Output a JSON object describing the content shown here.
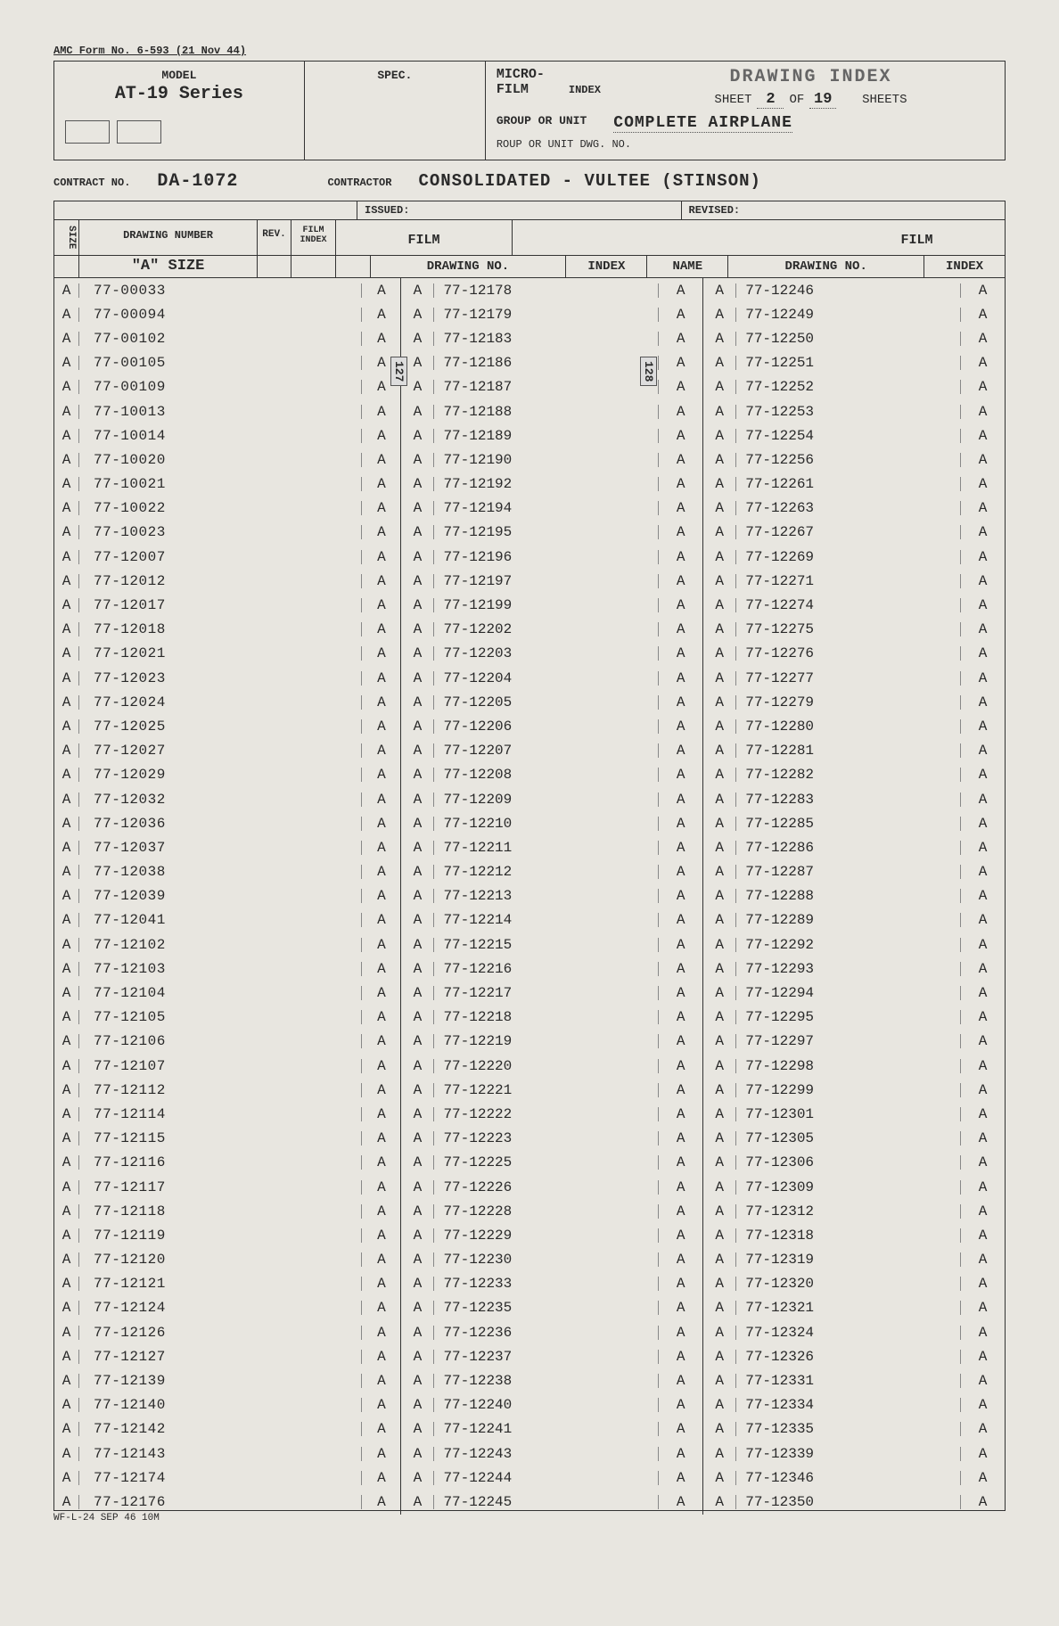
{
  "form_header": "AMC Form No. 6-593 (21 Nov 44)",
  "model_label": "MODEL",
  "model_value": "AT-19 Series",
  "spec_label": "SPEC.",
  "micro_label": "MICRO-",
  "film_label": "FILM",
  "index_label": "INDEX",
  "drawing_index_title": "DRAWING INDEX",
  "sheet_label": "SHEET",
  "sheet_num": "2",
  "of_label": "OF",
  "sheet_total": "19",
  "sheets_label": "SHEETS",
  "group_label": "GROUP OR UNIT",
  "group_value": "COMPLETE AIRPLANE",
  "roup_label": "ROUP OR UNIT DWG. NO.",
  "contract_label": "CONTRACT NO.",
  "contract_value": "DA-1072",
  "contractor_label": "CONTRACTOR",
  "contractor_value": "CONSOLIDATED - VULTEE (STINSON)",
  "issued_label": "ISSUED:",
  "revised_label": "REVISED:",
  "hdr_size": "SIZE",
  "hdr_drawing_number": "DRAWING NUMBER",
  "hdr_rev": "REV.",
  "hdr_film_index": "FILM INDEX",
  "hdr_film": "FILM",
  "hdr_drawing_no": "DRAWING NO.",
  "hdr_index": "INDEX",
  "hdr_name": "NAME",
  "a_size_label": "\"A\" SIZE",
  "tag_127": "127",
  "tag_128": "128",
  "footer": "WF-L-24 SEP 46  10M",
  "col1": [
    {
      "s": "A",
      "n": "77-00033",
      "f": "A"
    },
    {
      "s": "A",
      "n": "77-00094",
      "f": "A"
    },
    {
      "s": "A",
      "n": "77-00102",
      "f": "A"
    },
    {
      "s": "A",
      "n": "77-00105",
      "f": "A"
    },
    {
      "s": "A",
      "n": "77-00109",
      "f": "A"
    },
    {
      "s": "A",
      "n": "77-10013",
      "f": "A"
    },
    {
      "s": "A",
      "n": "77-10014",
      "f": "A"
    },
    {
      "s": "A",
      "n": "77-10020",
      "f": "A"
    },
    {
      "s": "A",
      "n": "77-10021",
      "f": "A"
    },
    {
      "s": "A",
      "n": "77-10022",
      "f": "A"
    },
    {
      "s": "A",
      "n": "77-10023",
      "f": "A"
    },
    {
      "s": "A",
      "n": "77-12007",
      "f": "A"
    },
    {
      "s": "A",
      "n": "77-12012",
      "f": "A"
    },
    {
      "s": "A",
      "n": "77-12017",
      "f": "A"
    },
    {
      "s": "A",
      "n": "77-12018",
      "f": "A"
    },
    {
      "s": "A",
      "n": "77-12021",
      "f": "A"
    },
    {
      "s": "A",
      "n": "77-12023",
      "f": "A"
    },
    {
      "s": "A",
      "n": "77-12024",
      "f": "A"
    },
    {
      "s": "A",
      "n": "77-12025",
      "f": "A"
    },
    {
      "s": "A",
      "n": "77-12027",
      "f": "A"
    },
    {
      "s": "A",
      "n": "77-12029",
      "f": "A"
    },
    {
      "s": "A",
      "n": "77-12032",
      "f": "A"
    },
    {
      "s": "A",
      "n": "77-12036",
      "f": "A"
    },
    {
      "s": "A",
      "n": "77-12037",
      "f": "A"
    },
    {
      "s": "A",
      "n": "77-12038",
      "f": "A"
    },
    {
      "s": "A",
      "n": "77-12039",
      "f": "A"
    },
    {
      "s": "A",
      "n": "77-12041",
      "f": "A"
    },
    {
      "s": "A",
      "n": "77-12102",
      "f": "A"
    },
    {
      "s": "A",
      "n": "77-12103",
      "f": "A"
    },
    {
      "s": "A",
      "n": "77-12104",
      "f": "A"
    },
    {
      "s": "A",
      "n": "77-12105",
      "f": "A"
    },
    {
      "s": "A",
      "n": "77-12106",
      "f": "A"
    },
    {
      "s": "A",
      "n": "77-12107",
      "f": "A"
    },
    {
      "s": "A",
      "n": "77-12112",
      "f": "A"
    },
    {
      "s": "A",
      "n": "77-12114",
      "f": "A"
    },
    {
      "s": "A",
      "n": "77-12115",
      "f": "A"
    },
    {
      "s": "A",
      "n": "77-12116",
      "f": "A"
    },
    {
      "s": "A",
      "n": "77-12117",
      "f": "A"
    },
    {
      "s": "A",
      "n": "77-12118",
      "f": "A"
    },
    {
      "s": "A",
      "n": "77-12119",
      "f": "A"
    },
    {
      "s": "A",
      "n": "77-12120",
      "f": "A"
    },
    {
      "s": "A",
      "n": "77-12121",
      "f": "A"
    },
    {
      "s": "A",
      "n": "77-12124",
      "f": "A"
    },
    {
      "s": "A",
      "n": "77-12126",
      "f": "A"
    },
    {
      "s": "A",
      "n": "77-12127",
      "f": "A"
    },
    {
      "s": "A",
      "n": "77-12139",
      "f": "A"
    },
    {
      "s": "A",
      "n": "77-12140",
      "f": "A"
    },
    {
      "s": "A",
      "n": "77-12142",
      "f": "A"
    },
    {
      "s": "A",
      "n": "77-12143",
      "f": "A"
    },
    {
      "s": "A",
      "n": "77-12174",
      "f": "A"
    },
    {
      "s": "A",
      "n": "77-12176",
      "f": "A"
    }
  ],
  "col2": [
    {
      "s": "A",
      "n": "77-12178",
      "f": "A"
    },
    {
      "s": "A",
      "n": "77-12179",
      "f": "A"
    },
    {
      "s": "A",
      "n": "77-12183",
      "f": "A"
    },
    {
      "s": "A",
      "n": "77-12186",
      "f": "A"
    },
    {
      "s": "A",
      "n": "77-12187",
      "f": "A"
    },
    {
      "s": "A",
      "n": "77-12188",
      "f": "A"
    },
    {
      "s": "A",
      "n": "77-12189",
      "f": "A"
    },
    {
      "s": "A",
      "n": "77-12190",
      "f": "A"
    },
    {
      "s": "A",
      "n": "77-12192",
      "f": "A"
    },
    {
      "s": "A",
      "n": "77-12194",
      "f": "A"
    },
    {
      "s": "A",
      "n": "77-12195",
      "f": "A"
    },
    {
      "s": "A",
      "n": "77-12196",
      "f": "A"
    },
    {
      "s": "A",
      "n": "77-12197",
      "f": "A"
    },
    {
      "s": "A",
      "n": "77-12199",
      "f": "A"
    },
    {
      "s": "A",
      "n": "77-12202",
      "f": "A"
    },
    {
      "s": "A",
      "n": "77-12203",
      "f": "A"
    },
    {
      "s": "A",
      "n": "77-12204",
      "f": "A"
    },
    {
      "s": "A",
      "n": "77-12205",
      "f": "A"
    },
    {
      "s": "A",
      "n": "77-12206",
      "f": "A"
    },
    {
      "s": "A",
      "n": "77-12207",
      "f": "A"
    },
    {
      "s": "A",
      "n": "77-12208",
      "f": "A"
    },
    {
      "s": "A",
      "n": "77-12209",
      "f": "A"
    },
    {
      "s": "A",
      "n": "77-12210",
      "f": "A"
    },
    {
      "s": "A",
      "n": "77-12211",
      "f": "A"
    },
    {
      "s": "A",
      "n": "77-12212",
      "f": "A"
    },
    {
      "s": "A",
      "n": "77-12213",
      "f": "A"
    },
    {
      "s": "A",
      "n": "77-12214",
      "f": "A"
    },
    {
      "s": "A",
      "n": "77-12215",
      "f": "A"
    },
    {
      "s": "A",
      "n": "77-12216",
      "f": "A"
    },
    {
      "s": "A",
      "n": "77-12217",
      "f": "A"
    },
    {
      "s": "A",
      "n": "77-12218",
      "f": "A"
    },
    {
      "s": "A",
      "n": "77-12219",
      "f": "A"
    },
    {
      "s": "A",
      "n": "77-12220",
      "f": "A"
    },
    {
      "s": "A",
      "n": "77-12221",
      "f": "A"
    },
    {
      "s": "A",
      "n": "77-12222",
      "f": "A"
    },
    {
      "s": "A",
      "n": "77-12223",
      "f": "A"
    },
    {
      "s": "A",
      "n": "77-12225",
      "f": "A"
    },
    {
      "s": "A",
      "n": "77-12226",
      "f": "A"
    },
    {
      "s": "A",
      "n": "77-12228",
      "f": "A"
    },
    {
      "s": "A",
      "n": "77-12229",
      "f": "A"
    },
    {
      "s": "A",
      "n": "77-12230",
      "f": "A"
    },
    {
      "s": "A",
      "n": "77-12233",
      "f": "A"
    },
    {
      "s": "A",
      "n": "77-12235",
      "f": "A"
    },
    {
      "s": "A",
      "n": "77-12236",
      "f": "A"
    },
    {
      "s": "A",
      "n": "77-12237",
      "f": "A"
    },
    {
      "s": "A",
      "n": "77-12238",
      "f": "A"
    },
    {
      "s": "A",
      "n": "77-12240",
      "f": "A"
    },
    {
      "s": "A",
      "n": "77-12241",
      "f": "A"
    },
    {
      "s": "A",
      "n": "77-12243",
      "f": "A"
    },
    {
      "s": "A",
      "n": "77-12244",
      "f": "A"
    },
    {
      "s": "A",
      "n": "77-12245",
      "f": "A"
    }
  ],
  "col3": [
    {
      "s": "A",
      "n": "77-12246",
      "f": "A"
    },
    {
      "s": "A",
      "n": "77-12249",
      "f": "A"
    },
    {
      "s": "A",
      "n": "77-12250",
      "f": "A"
    },
    {
      "s": "A",
      "n": "77-12251",
      "f": "A"
    },
    {
      "s": "A",
      "n": "77-12252",
      "f": "A"
    },
    {
      "s": "A",
      "n": "77-12253",
      "f": "A"
    },
    {
      "s": "A",
      "n": "77-12254",
      "f": "A"
    },
    {
      "s": "A",
      "n": "77-12256",
      "f": "A"
    },
    {
      "s": "A",
      "n": "77-12261",
      "f": "A"
    },
    {
      "s": "A",
      "n": "77-12263",
      "f": "A"
    },
    {
      "s": "A",
      "n": "77-12267",
      "f": "A"
    },
    {
      "s": "A",
      "n": "77-12269",
      "f": "A"
    },
    {
      "s": "A",
      "n": "77-12271",
      "f": "A"
    },
    {
      "s": "A",
      "n": "77-12274",
      "f": "A"
    },
    {
      "s": "A",
      "n": "77-12275",
      "f": "A"
    },
    {
      "s": "A",
      "n": "77-12276",
      "f": "A"
    },
    {
      "s": "A",
      "n": "77-12277",
      "f": "A"
    },
    {
      "s": "A",
      "n": "77-12279",
      "f": "A"
    },
    {
      "s": "A",
      "n": "77-12280",
      "f": "A"
    },
    {
      "s": "A",
      "n": "77-12281",
      "f": "A"
    },
    {
      "s": "A",
      "n": "77-12282",
      "f": "A"
    },
    {
      "s": "A",
      "n": "77-12283",
      "f": "A"
    },
    {
      "s": "A",
      "n": "77-12285",
      "f": "A"
    },
    {
      "s": "A",
      "n": "77-12286",
      "f": "A"
    },
    {
      "s": "A",
      "n": "77-12287",
      "f": "A"
    },
    {
      "s": "A",
      "n": "77-12288",
      "f": "A"
    },
    {
      "s": "A",
      "n": "77-12289",
      "f": "A"
    },
    {
      "s": "A",
      "n": "77-12292",
      "f": "A"
    },
    {
      "s": "A",
      "n": "77-12293",
      "f": "A"
    },
    {
      "s": "A",
      "n": "77-12294",
      "f": "A"
    },
    {
      "s": "A",
      "n": "77-12295",
      "f": "A"
    },
    {
      "s": "A",
      "n": "77-12297",
      "f": "A"
    },
    {
      "s": "A",
      "n": "77-12298",
      "f": "A"
    },
    {
      "s": "A",
      "n": "77-12299",
      "f": "A"
    },
    {
      "s": "A",
      "n": "77-12301",
      "f": "A"
    },
    {
      "s": "A",
      "n": "77-12305",
      "f": "A"
    },
    {
      "s": "A",
      "n": "77-12306",
      "f": "A"
    },
    {
      "s": "A",
      "n": "77-12309",
      "f": "A"
    },
    {
      "s": "A",
      "n": "77-12312",
      "f": "A"
    },
    {
      "s": "A",
      "n": "77-12318",
      "f": "A"
    },
    {
      "s": "A",
      "n": "77-12319",
      "f": "A"
    },
    {
      "s": "A",
      "n": "77-12320",
      "f": "A"
    },
    {
      "s": "A",
      "n": "77-12321",
      "f": "A"
    },
    {
      "s": "A",
      "n": "77-12324",
      "f": "A"
    },
    {
      "s": "A",
      "n": "77-12326",
      "f": "A"
    },
    {
      "s": "A",
      "n": "77-12331",
      "f": "A"
    },
    {
      "s": "A",
      "n": "77-12334",
      "f": "A"
    },
    {
      "s": "A",
      "n": "77-12335",
      "f": "A"
    },
    {
      "s": "A",
      "n": "77-12339",
      "f": "A"
    },
    {
      "s": "A",
      "n": "77-12346",
      "f": "A"
    },
    {
      "s": "A",
      "n": "77-12350",
      "f": "A"
    }
  ]
}
